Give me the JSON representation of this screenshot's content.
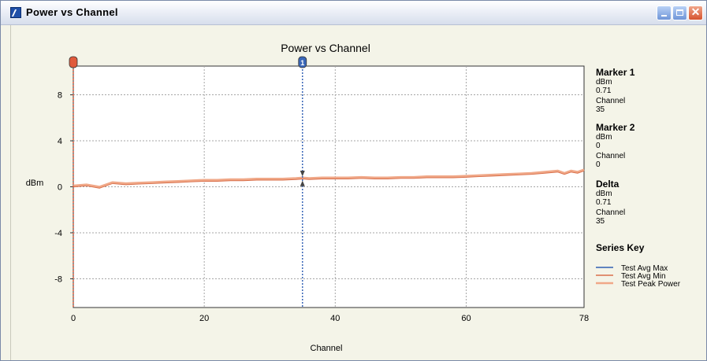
{
  "window": {
    "title": "Power vs Channel",
    "controls": {
      "minimize_icon": "minimize-icon",
      "maximize_icon": "maximize-icon",
      "close_icon": "close-icon",
      "close_glyph": "✕"
    }
  },
  "chart_data": {
    "type": "line",
    "title": "Power vs Channel",
    "xlabel": "Channel",
    "ylabel": "dBm",
    "xlim": [
      0,
      78
    ],
    "ylim": [
      -10.5,
      10.5
    ],
    "x_ticks": [
      0,
      20,
      40,
      60,
      78
    ],
    "y_ticks": [
      8,
      4,
      0,
      -4,
      -8
    ],
    "grid": true,
    "legend_title": "Series Key",
    "series": [
      {
        "name": "Test Avg Max",
        "color": "#2f5fb3",
        "x": [],
        "y": []
      },
      {
        "name": "Test Avg Min",
        "color": "#d96f4a",
        "x": [
          0,
          2,
          4,
          6,
          8,
          10,
          12,
          14,
          16,
          18,
          20,
          22,
          24,
          26,
          28,
          30,
          32,
          34,
          35,
          36,
          38,
          40,
          42,
          44,
          46,
          48,
          50,
          52,
          54,
          56,
          58,
          60,
          62,
          64,
          66,
          68,
          70,
          72,
          74,
          75,
          76,
          77,
          78
        ],
        "y": [
          0.0,
          0.1,
          -0.1,
          0.3,
          0.2,
          0.25,
          0.3,
          0.35,
          0.4,
          0.45,
          0.5,
          0.5,
          0.55,
          0.55,
          0.6,
          0.6,
          0.6,
          0.65,
          0.7,
          0.65,
          0.7,
          0.7,
          0.7,
          0.75,
          0.7,
          0.7,
          0.75,
          0.75,
          0.8,
          0.8,
          0.8,
          0.85,
          0.9,
          0.95,
          1.0,
          1.05,
          1.1,
          1.2,
          1.3,
          1.1,
          1.3,
          1.2,
          1.4
        ]
      },
      {
        "name": "Test Peak Power",
        "color": "#f0a888",
        "x": [
          0,
          2,
          4,
          6,
          8,
          10,
          12,
          14,
          16,
          18,
          20,
          22,
          24,
          26,
          28,
          30,
          32,
          34,
          35,
          36,
          38,
          40,
          42,
          44,
          46,
          48,
          50,
          52,
          54,
          56,
          58,
          60,
          62,
          64,
          66,
          68,
          70,
          72,
          74,
          75,
          76,
          77,
          78
        ],
        "y": [
          0.1,
          0.2,
          0.0,
          0.4,
          0.3,
          0.35,
          0.4,
          0.45,
          0.5,
          0.55,
          0.6,
          0.6,
          0.65,
          0.65,
          0.7,
          0.7,
          0.7,
          0.75,
          0.8,
          0.75,
          0.8,
          0.8,
          0.8,
          0.85,
          0.8,
          0.8,
          0.85,
          0.85,
          0.9,
          0.9,
          0.9,
          0.95,
          1.0,
          1.05,
          1.1,
          1.15,
          1.2,
          1.3,
          1.4,
          1.2,
          1.4,
          1.3,
          1.5
        ]
      }
    ],
    "markers": [
      {
        "label": "1",
        "x": 35,
        "color": "#3a67b8"
      },
      {
        "label": "",
        "x": 0,
        "color": "#e05a3c"
      }
    ]
  },
  "readouts": [
    {
      "title": "Marker 1",
      "unit": "dBm",
      "value": "0.71",
      "ch_label": "Channel",
      "ch_value": "35"
    },
    {
      "title": "Marker 2",
      "unit": "dBm",
      "value": "0",
      "ch_label": "Channel",
      "ch_value": "0"
    },
    {
      "title": "Delta",
      "unit": "dBm",
      "value": "0.71",
      "ch_label": "Channel",
      "ch_value": "35"
    }
  ]
}
